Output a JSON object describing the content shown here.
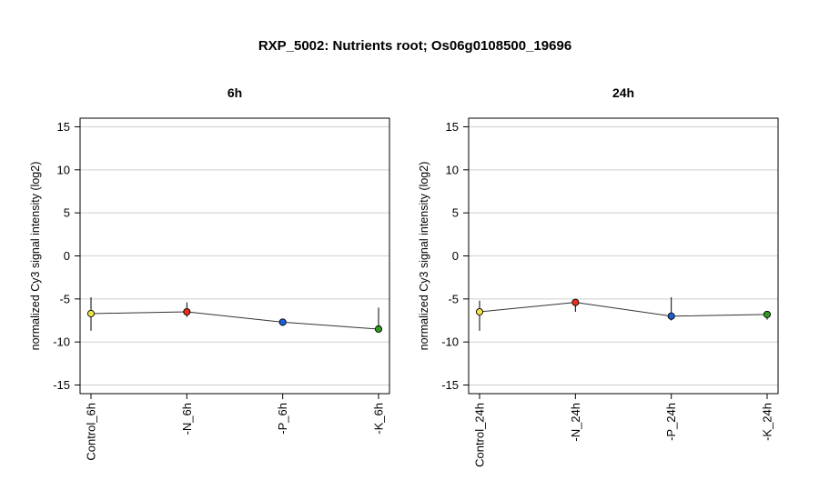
{
  "figure": {
    "title": "RXP_5002: Nutrients root; Os06g0108500_19696"
  },
  "chart_data": [
    {
      "type": "line",
      "title": "6h",
      "xlabel": "",
      "ylabel": "normalized Cy3 signal intensity (log2)",
      "ylim": [
        -16,
        16
      ],
      "yticks": [
        -15,
        -10,
        -5,
        0,
        5,
        10,
        15
      ],
      "grid": true,
      "categories": [
        "Control_6h",
        "-N_6h",
        "-P_6h",
        "-K_6h"
      ],
      "values": [
        -6.7,
        -6.5,
        -7.7,
        -8.5
      ],
      "error_low": [
        -8.7,
        -7.1,
        -7.9,
        -8.7
      ],
      "error_high": [
        -4.8,
        -5.4,
        -7.5,
        -6.0
      ],
      "point_colors": [
        "#f0e442",
        "#e8301c",
        "#1f5fd6",
        "#2e9b1f"
      ]
    },
    {
      "type": "line",
      "title": "24h",
      "xlabel": "",
      "ylabel": "normalized Cy3 signal intensity (log2)",
      "ylim": [
        -16,
        16
      ],
      "yticks": [
        -15,
        -10,
        -5,
        0,
        5,
        10,
        15
      ],
      "grid": true,
      "categories": [
        "Control_24h",
        "-N_24h",
        "-P_24h",
        "-K_24h"
      ],
      "values": [
        -6.5,
        -5.4,
        -7.0,
        -6.8
      ],
      "error_low": [
        -8.7,
        -6.5,
        -7.5,
        -7.4
      ],
      "error_high": [
        -5.2,
        -5.0,
        -4.8,
        -6.4
      ],
      "point_colors": [
        "#f0e442",
        "#e8301c",
        "#1f5fd6",
        "#2e9b1f"
      ]
    }
  ]
}
